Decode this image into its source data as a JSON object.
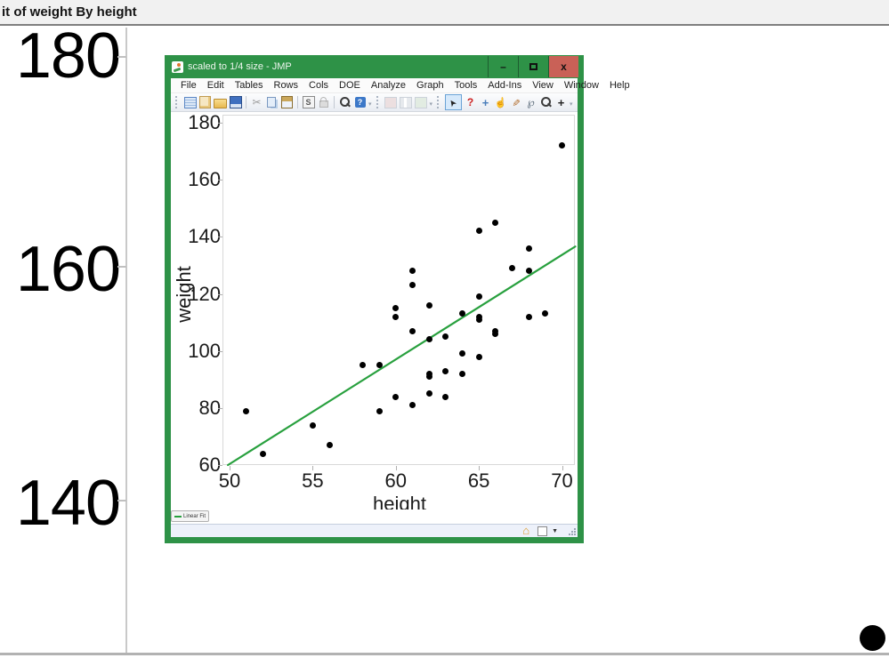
{
  "page": {
    "header_title": "it of weight By height"
  },
  "background_plot": {
    "visible_y_tick_labels": [
      "180",
      "160",
      "140"
    ],
    "visible_point": {
      "height": 70,
      "weight": 172
    }
  },
  "window": {
    "title": "scaled to 1/4 size - JMP",
    "window_buttons": [
      {
        "name": "minimize",
        "glyph": "–"
      },
      {
        "name": "maximize",
        "glyph": "sq"
      },
      {
        "name": "close",
        "glyph": "x"
      }
    ],
    "menu_items": [
      "File",
      "Edit",
      "Tables",
      "Rows",
      "Cols",
      "DOE",
      "Analyze",
      "Graph",
      "Tools",
      "Add-Ins",
      "View",
      "Window",
      "Help"
    ],
    "toolbar_groups": [
      {
        "icons": [
          "new-data-table",
          "new-journal",
          "open",
          "save"
        ]
      },
      {
        "icons": [
          "cut",
          "copy",
          "paste"
        ]
      },
      {
        "icons": [
          "script-window",
          "lock"
        ]
      },
      {
        "icons": [
          "search",
          "help"
        ]
      },
      {
        "icons": [
          "journal-disabled",
          "compare-disabled",
          "add-disabled"
        ]
      },
      {
        "icons": [
          "arrow-tool",
          "help-tool",
          "move-tool",
          "grabber-tool",
          "brush-tool",
          "lasso-tool",
          "magnifier-tool",
          "crosshair-tool"
        ]
      }
    ],
    "legend_label": "Linear Fit",
    "status_bar": {
      "icons": [
        "home",
        "checkbox",
        "dropdown-caret",
        "resize-grip"
      ]
    }
  },
  "chart_data": {
    "type": "scatter",
    "title": "",
    "xlabel": "height",
    "ylabel": "weight",
    "x_ticks": [
      50,
      55,
      60,
      65,
      70
    ],
    "y_ticks": [
      60,
      80,
      100,
      120,
      140,
      160,
      180
    ],
    "xlim": [
      49.6,
      70.8
    ],
    "ylim": [
      59.8,
      182.8
    ],
    "grid": false,
    "marker_color": "#000000",
    "points": [
      [
        51,
        79
      ],
      [
        52,
        64
      ],
      [
        55,
        74
      ],
      [
        56,
        67
      ],
      [
        58,
        95
      ],
      [
        59,
        95
      ],
      [
        59,
        79
      ],
      [
        60,
        115
      ],
      [
        60,
        112
      ],
      [
        60,
        84
      ],
      [
        61,
        128
      ],
      [
        61,
        123
      ],
      [
        61,
        107
      ],
      [
        61,
        81
      ],
      [
        62,
        116
      ],
      [
        62,
        104
      ],
      [
        62,
        92
      ],
      [
        62,
        91
      ],
      [
        62,
        85
      ],
      [
        63,
        105
      ],
      [
        63,
        93
      ],
      [
        63,
        84
      ],
      [
        64,
        113
      ],
      [
        64,
        99
      ],
      [
        64,
        92
      ],
      [
        65,
        142
      ],
      [
        65,
        119
      ],
      [
        65,
        112
      ],
      [
        65,
        111
      ],
      [
        65,
        98
      ],
      [
        66,
        145
      ],
      [
        66,
        107
      ],
      [
        66,
        106
      ],
      [
        67,
        129
      ],
      [
        68,
        136
      ],
      [
        68,
        128
      ],
      [
        68,
        112
      ],
      [
        69,
        113
      ],
      [
        70,
        172
      ]
    ],
    "fit_line": {
      "label": "Linear Fit",
      "color": "#28a03e",
      "x1": 49.9,
      "y1": 60,
      "x2": 70.8,
      "y2": 136.6
    }
  },
  "colors": {
    "window_green": "#2E9247",
    "close_red": "#C96157",
    "fit_green": "#28a03e",
    "marker_black": "#000000"
  }
}
